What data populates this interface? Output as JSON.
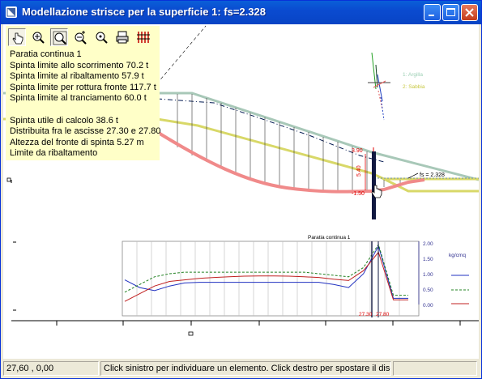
{
  "window": {
    "title": "Modellazione strisce per la superficie 1: fs=2.328"
  },
  "toolbar": {
    "tools": [
      {
        "icon": "hand-pointer-icon",
        "name": "pan"
      },
      {
        "icon": "zoom-in-icon",
        "name": "zoom-in"
      },
      {
        "icon": "zoom-window-icon",
        "name": "zoom-window"
      },
      {
        "icon": "zoom-plus-minus-icon",
        "name": "zoom-toggle"
      },
      {
        "icon": "zoom-extents-icon",
        "name": "zoom-extents"
      },
      {
        "icon": "printer-icon",
        "name": "print"
      },
      {
        "icon": "columns-icon",
        "name": "strips"
      }
    ]
  },
  "info": {
    "lines": [
      "Paratia continua 1",
      "Spinta limite allo scorrimento 70.2 t",
      "Spinta limite al ribaltamento 57.9 t",
      "Spinta limite per rottura fronte 117.7 t",
      "Spinta limite al tranciamento 60.0 t",
      "",
      "Spinta utile di calcolo 38.6 t",
      "Distribuita fra le ascisse 27.30 e 27.80",
      "Altezza del fronte di spinta 5.27 m",
      "Limite da ribaltamento"
    ]
  },
  "legend": {
    "items": [
      {
        "label": "1: Argilla",
        "color": "#9ccfb4"
      },
      {
        "label": "2: Sabbia",
        "color": "#d8d860"
      }
    ]
  },
  "drawing": {
    "fs_label": "fs = 2.328",
    "dim_top": "3.90",
    "dim_bottom": "-1.50",
    "dim_height": "5.40",
    "colors": {
      "surface_clay": "#a8c8b8",
      "surface_sand": "#d8d868",
      "slip_surface": "#f08a8a",
      "wall": "#101840",
      "dim_red": "#e00000"
    }
  },
  "chart": {
    "title": "Paratia continua 1",
    "unit": "kg/cmq",
    "y_ticks": [
      "2.00",
      "1.50",
      "1.00",
      "0.50",
      "0.00"
    ],
    "x_marks": [
      "27.30",
      "27.80"
    ]
  },
  "chart_data": {
    "type": "line",
    "title": "Paratia continua 1",
    "ylabel": "kg/cmq",
    "ylim": [
      0,
      2
    ],
    "x": [
      0,
      1,
      2,
      3,
      4,
      5,
      6,
      7,
      8,
      9,
      10,
      11,
      12,
      13,
      14,
      15,
      16,
      17,
      18,
      19
    ],
    "x_marks": [
      "27.30",
      "27.80"
    ],
    "series": [
      {
        "values": [
          0.8,
          0.55,
          0.45,
          0.6,
          0.7,
          0.72,
          0.72,
          0.72,
          0.72,
          0.72,
          0.72,
          0.72,
          0.72,
          0.72,
          0.65,
          0.55,
          1.0,
          1.9,
          0.2,
          0.2
        ]
      },
      {
        "values": [
          0.4,
          0.65,
          0.9,
          1.0,
          1.05,
          1.05,
          1.05,
          1.05,
          1.05,
          1.05,
          1.05,
          1.05,
          1.05,
          1.0,
          0.95,
          0.9,
          1.2,
          1.95,
          0.3,
          0.3
        ]
      },
      {
        "values": [
          0.1,
          0.35,
          0.6,
          0.75,
          0.8,
          0.85,
          0.88,
          0.9,
          0.92,
          0.93,
          0.93,
          0.92,
          0.9,
          0.88,
          0.82,
          0.78,
          1.1,
          1.7,
          0.15,
          0.15
        ]
      }
    ]
  },
  "status": {
    "coords": "27,60 , 0,00",
    "message": "Click sinistro per individuare un elemento. Click destro per spostare il disegno"
  }
}
